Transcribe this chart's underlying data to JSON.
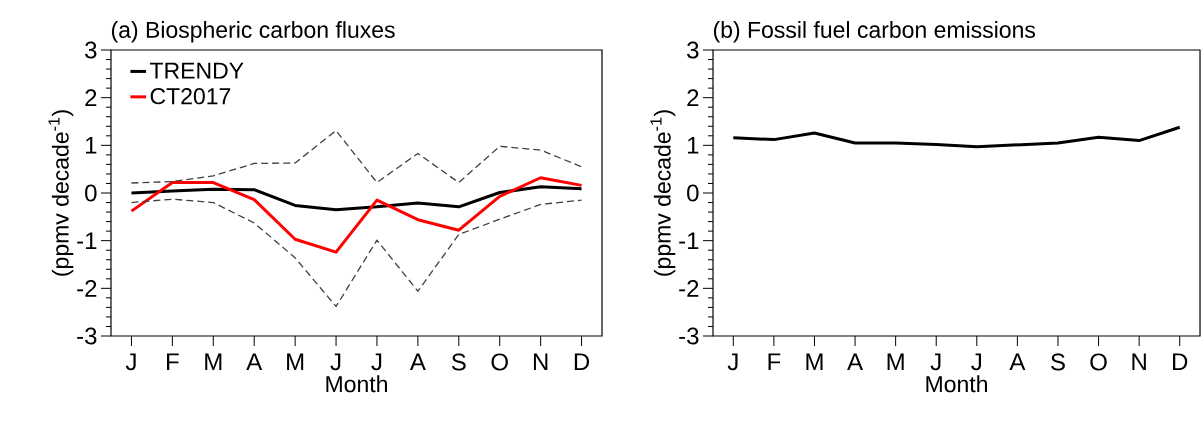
{
  "chart_data": [
    {
      "type": "line",
      "title": "(a) Biospheric carbon fluxes",
      "xlabel": "Month",
      "ylabel": "(ppmv decade$^{-1}$)",
      "categories": [
        "J",
        "F",
        "M",
        "A",
        "M",
        "J",
        "J",
        "A",
        "S",
        "O",
        "N",
        "D"
      ],
      "ylim": [
        -3,
        3
      ],
      "yticks": [
        -3,
        -2,
        -1,
        0,
        1,
        2,
        3
      ],
      "legend": "top left",
      "series": [
        {
          "name": "TRENDY",
          "color": "#000000",
          "line_style": "solid",
          "values": [
            0,
            0.04,
            0.08,
            0.07,
            -0.26,
            -0.35,
            -0.29,
            -0.21,
            -0.29,
            0.01,
            0.13,
            0.09
          ]
        },
        {
          "name": "CT2017",
          "color": "#ff0000",
          "line_style": "solid",
          "values": [
            -0.38,
            0.22,
            0.22,
            -0.14,
            -0.97,
            -1.24,
            -0.15,
            -0.56,
            -0.78,
            -0.07,
            0.32,
            0.16
          ]
        },
        {
          "color": "#404040",
          "line_style": "dashed",
          "values": [
            0.21,
            0.24,
            0.36,
            0.62,
            0.63,
            1.31,
            0.22,
            0.83,
            0.22,
            0.98,
            0.9,
            0.55
          ]
        },
        {
          "color": "#404040",
          "line_style": "dashed",
          "values": [
            -0.2,
            -0.13,
            -0.2,
            -0.63,
            -1.36,
            -2.38,
            -0.99,
            -2.06,
            -0.87,
            -0.55,
            -0.24,
            -0.15
          ]
        }
      ]
    },
    {
      "type": "line",
      "title": "(b) Fossil fuel carbon emissions",
      "xlabel": "Month",
      "ylabel": "(ppmv decade$^{-1}$)",
      "categories": [
        "J",
        "F",
        "M",
        "A",
        "M",
        "J",
        "J",
        "A",
        "S",
        "O",
        "N",
        "D"
      ],
      "ylim": [
        -3,
        3
      ],
      "yticks": [
        -3,
        -2,
        -1,
        0,
        1,
        2,
        3
      ],
      "series": [
        {
          "color": "#000000",
          "line_style": "solid",
          "values": [
            1.16,
            1.12,
            1.26,
            1.05,
            1.05,
            1.02,
            0.97,
            1.01,
            1.05,
            1.17,
            1.1,
            1.38
          ]
        }
      ]
    }
  ]
}
